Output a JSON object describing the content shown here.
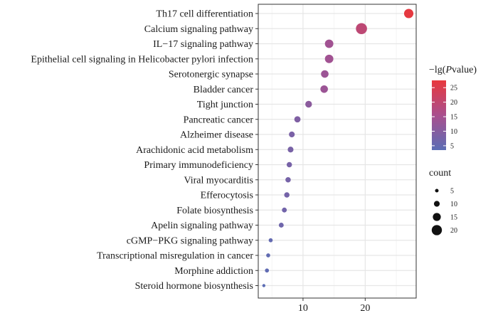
{
  "chart_data": {
    "type": "scatter",
    "categories": [
      "Th17 cell differentiation",
      "Calcium signaling pathway",
      "IL−17 signaling pathway",
      "Epithelial cell signaling in Helicobacter pylori infection",
      "Serotonergic synapse",
      "Bladder cancer",
      "Tight junction",
      "Pancreatic cancer",
      "Alzheimer disease",
      "Arachidonic acid metabolism",
      "Primary immunodeficiency",
      "Viral myocarditis",
      "Efferocytosis",
      "Folate biosynthesis",
      "Apelin signaling pathway",
      "cGMP−PKG signaling pathway",
      "Transcriptional misregulation in cancer",
      "Morphine addiction",
      "Steroid hormone biosynthesis"
    ],
    "x": [
      27.0,
      19.4,
      14.2,
      14.2,
      13.5,
      13.4,
      10.9,
      9.1,
      8.2,
      8.0,
      7.8,
      7.6,
      7.4,
      7.0,
      6.5,
      4.8,
      4.4,
      4.2,
      3.7
    ],
    "color_values": [
      27.0,
      19.4,
      14.2,
      14.2,
      13.5,
      13.4,
      10.9,
      9.1,
      8.2,
      8.0,
      7.8,
      7.6,
      7.4,
      7.0,
      6.5,
      4.8,
      4.4,
      4.2,
      3.7
    ],
    "counts": [
      18,
      22,
      16,
      16,
      14,
      14,
      12,
      11,
      10,
      10,
      9,
      9,
      9,
      8,
      8,
      6,
      6,
      6,
      4
    ],
    "xlim": [
      2.8,
      28.2
    ],
    "x_ticks": [
      10,
      20
    ],
    "x_tick_labels": [
      "10",
      "20"
    ],
    "grid": true,
    "color_legend": {
      "title": "−lg(",
      "title_italic": "P",
      "title_suffix": "value)",
      "range": [
        3.5,
        27.5
      ],
      "ticks": [
        5,
        10,
        15,
        20,
        25
      ],
      "tick_labels": [
        "5",
        "10",
        "15",
        "20",
        "25"
      ],
      "low_color": "#5b6db5",
      "mid_color": "#a94f8e",
      "high_color": "#e8383d"
    },
    "size_legend": {
      "title": "count",
      "values": [
        5,
        10,
        15,
        20
      ],
      "labels": [
        "5",
        "10",
        "15",
        "20"
      ],
      "color": "#111111"
    }
  }
}
